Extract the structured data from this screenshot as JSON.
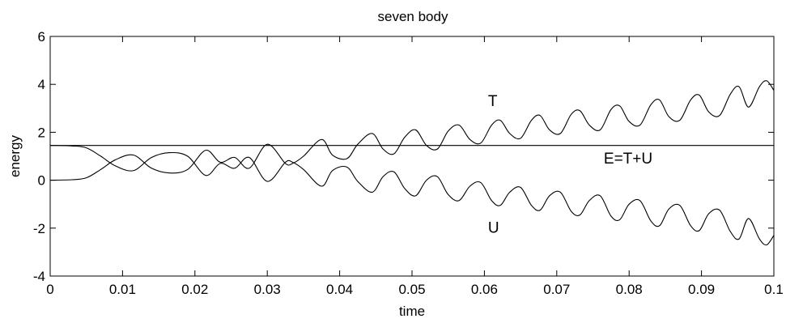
{
  "chart_data": {
    "type": "line",
    "title": "seven body",
    "xlabel": "time",
    "ylabel": "energy",
    "xlim": [
      0,
      0.1
    ],
    "ylim": [
      -4,
      6
    ],
    "grid": false,
    "line_color": "#000000",
    "x_ticks": [
      "0",
      "0.01",
      "0.02",
      "0.03",
      "0.04",
      "0.05",
      "0.06",
      "0.07",
      "0.08",
      "0.09",
      "0.1"
    ],
    "y_ticks": [
      "-4",
      "-2",
      "0",
      "2",
      "4",
      "6"
    ],
    "series": [
      {
        "name": "T",
        "x": [
          0,
          0.003,
          0.005,
          0.007,
          0.009,
          0.0115,
          0.014,
          0.0165,
          0.019,
          0.0215,
          0.0235,
          0.0255,
          0.0275,
          0.03,
          0.0325,
          0.0335,
          0.035,
          0.0375,
          0.039,
          0.041,
          0.0425,
          0.0445,
          0.046,
          0.0475,
          0.049,
          0.0505,
          0.052,
          0.0535,
          0.055,
          0.0565,
          0.058,
          0.0595,
          0.061,
          0.0622,
          0.0635,
          0.065,
          0.0665,
          0.0677,
          0.069,
          0.0705,
          0.072,
          0.0732,
          0.0745,
          0.076,
          0.0775,
          0.0787,
          0.08,
          0.0815,
          0.083,
          0.0842,
          0.0855,
          0.087,
          0.0885,
          0.0897,
          0.091,
          0.0925,
          0.094,
          0.0952,
          0.0965,
          0.098,
          0.099,
          0.1
        ],
        "y": [
          0.0,
          0.02,
          0.1,
          0.45,
          0.85,
          1.05,
          0.5,
          0.3,
          0.45,
          1.25,
          0.75,
          0.95,
          0.5,
          1.5,
          0.7,
          0.7,
          1.0,
          1.7,
          1.05,
          0.9,
          1.5,
          1.95,
          1.3,
          1.1,
          1.8,
          2.1,
          1.45,
          1.3,
          2.05,
          2.3,
          1.7,
          1.55,
          2.3,
          2.5,
          1.95,
          1.75,
          2.5,
          2.7,
          2.1,
          1.95,
          2.75,
          2.9,
          2.3,
          2.1,
          2.95,
          3.1,
          2.45,
          2.3,
          3.15,
          3.35,
          2.65,
          2.5,
          3.35,
          3.55,
          2.85,
          2.7,
          3.6,
          3.9,
          3.05,
          3.9,
          4.15,
          3.75
        ]
      },
      {
        "name": "U",
        "x": [
          0,
          0.003,
          0.005,
          0.007,
          0.009,
          0.0115,
          0.014,
          0.0165,
          0.019,
          0.0215,
          0.0235,
          0.0255,
          0.0275,
          0.03,
          0.0325,
          0.0335,
          0.035,
          0.0375,
          0.039,
          0.041,
          0.0425,
          0.0445,
          0.046,
          0.0475,
          0.049,
          0.0505,
          0.052,
          0.0535,
          0.055,
          0.0565,
          0.058,
          0.0595,
          0.061,
          0.0622,
          0.0635,
          0.065,
          0.0665,
          0.0677,
          0.069,
          0.0705,
          0.072,
          0.0732,
          0.0745,
          0.076,
          0.0775,
          0.0787,
          0.08,
          0.0815,
          0.083,
          0.0842,
          0.0855,
          0.087,
          0.0885,
          0.0897,
          0.091,
          0.0925,
          0.094,
          0.0952,
          0.0965,
          0.098,
          0.099,
          0.1
        ],
        "y": [
          1.45,
          1.43,
          1.35,
          1.0,
          0.6,
          0.4,
          0.95,
          1.15,
          1.0,
          0.2,
          0.7,
          0.5,
          0.95,
          -0.05,
          0.75,
          0.75,
          0.45,
          -0.25,
          0.4,
          0.55,
          -0.05,
          -0.5,
          0.15,
          0.35,
          -0.35,
          -0.65,
          0.0,
          0.15,
          -0.6,
          -0.85,
          -0.25,
          -0.1,
          -0.85,
          -1.05,
          -0.5,
          -0.3,
          -1.05,
          -1.25,
          -0.65,
          -0.5,
          -1.3,
          -1.45,
          -0.85,
          -0.65,
          -1.5,
          -1.65,
          -1.0,
          -0.85,
          -1.7,
          -1.9,
          -1.2,
          -1.05,
          -1.9,
          -2.1,
          -1.4,
          -1.25,
          -2.15,
          -2.45,
          -1.6,
          -2.45,
          -2.7,
          -2.3
        ]
      },
      {
        "name": "E=T+U",
        "x": [
          0,
          0.1
        ],
        "y": [
          1.45,
          1.45
        ]
      }
    ],
    "annotations": [
      {
        "text": "T",
        "x": 0.0605,
        "y": 3.1
      },
      {
        "text": "E=T+U",
        "x": 0.0765,
        "y": 0.7
      },
      {
        "text": "U",
        "x": 0.0605,
        "y": -2.2
      }
    ]
  }
}
